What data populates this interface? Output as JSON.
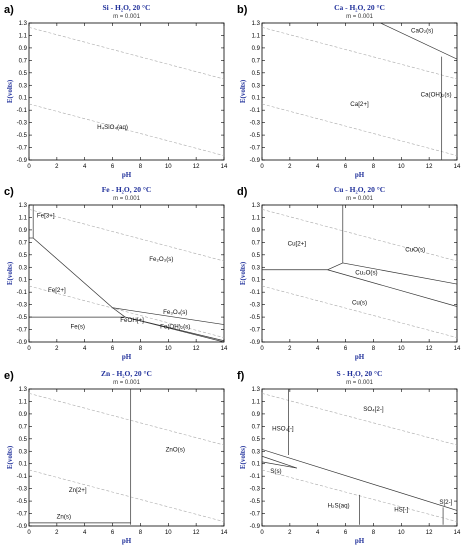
{
  "chart_data": [
    {
      "type": "line",
      "panel": "a)",
      "title": "Si - H₂O, 20 °C",
      "subtitle": "m = 0.001",
      "xlabel": "pH",
      "ylabel": "E(volts)",
      "xlim": [
        0,
        14
      ],
      "ylim": [
        -0.9,
        1.3
      ],
      "xticks": [
        0,
        2,
        4,
        6,
        8,
        10,
        12,
        14
      ],
      "yticks": [
        1.3,
        1.1,
        0.9,
        0.7,
        0.5,
        0.3,
        0.1,
        -0.1,
        -0.3,
        -0.5,
        -0.7,
        -0.9
      ],
      "water_lines": [
        {
          "label": "H₂O upper",
          "points": [
            [
              0,
              1.23
            ],
            [
              14,
              0.4
            ]
          ]
        },
        {
          "label": "H₂O lower",
          "points": [
            [
              0,
              0.0
            ],
            [
              14,
              -0.83
            ]
          ]
        }
      ],
      "boundaries": [],
      "regions": [
        {
          "label": "H₄SiO₄(aq)",
          "x": 6.0,
          "y": -0.4
        }
      ]
    },
    {
      "type": "line",
      "panel": "b)",
      "title": "Ca - H₂O, 20 °C",
      "subtitle": "m = 0.001",
      "xlabel": "pH",
      "ylabel": "E(volts)",
      "xlim": [
        0,
        14
      ],
      "ylim": [
        -0.9,
        1.3
      ],
      "xticks": [
        0,
        2,
        4,
        6,
        8,
        10,
        12,
        14
      ],
      "yticks": [
        1.3,
        1.1,
        0.9,
        0.7,
        0.5,
        0.3,
        0.1,
        -0.1,
        -0.3,
        -0.5,
        -0.7,
        -0.9
      ],
      "water_lines": [
        {
          "label": "H₂O upper",
          "points": [
            [
              0,
              1.23
            ],
            [
              14,
              0.4
            ]
          ]
        },
        {
          "label": "H₂O lower",
          "points": [
            [
              0,
              0.0
            ],
            [
              14,
              -0.83
            ]
          ]
        }
      ],
      "boundaries": [
        {
          "points": [
            [
              8.5,
              1.3
            ],
            [
              14,
              0.72
            ]
          ]
        },
        {
          "points": [
            [
              12.9,
              0.76
            ],
            [
              12.9,
              -0.9
            ]
          ]
        }
      ],
      "regions": [
        {
          "label": "CaO₂(s)",
          "x": 11.5,
          "y": 1.15
        },
        {
          "label": "Ca(OH)₂(s)",
          "x": 12.5,
          "y": 0.12
        },
        {
          "label": "Ca[2+]",
          "x": 7.0,
          "y": -0.03
        }
      ]
    },
    {
      "type": "line",
      "panel": "c)",
      "title": "Fe - H₂O, 20 °C",
      "subtitle": "m = 0.001",
      "xlabel": "pH",
      "ylabel": "E(volts)",
      "xlim": [
        0,
        14
      ],
      "ylim": [
        -0.9,
        1.3
      ],
      "xticks": [
        0,
        2,
        4,
        6,
        8,
        10,
        12,
        14
      ],
      "yticks": [
        1.3,
        1.1,
        0.9,
        0.7,
        0.5,
        0.3,
        0.1,
        -0.1,
        -0.3,
        -0.5,
        -0.7,
        -0.9
      ],
      "water_lines": [
        {
          "label": "H₂O upper",
          "points": [
            [
              0,
              1.23
            ],
            [
              14,
              0.4
            ]
          ]
        },
        {
          "label": "H₂O lower",
          "points": [
            [
              0,
              0.0
            ],
            [
              14,
              -0.83
            ]
          ]
        }
      ],
      "boundaries": [
        {
          "points": [
            [
              0.0,
              0.77
            ],
            [
              0.3,
              0.77
            ]
          ]
        },
        {
          "points": [
            [
              0.3,
              1.3
            ],
            [
              0.3,
              0.77
            ]
          ]
        },
        {
          "points": [
            [
              0.3,
              0.77
            ],
            [
              6.0,
              -0.35
            ]
          ]
        },
        {
          "points": [
            [
              6.0,
              -0.35
            ],
            [
              6.9,
              -0.5
            ]
          ]
        },
        {
          "points": [
            [
              0.0,
              -0.5
            ],
            [
              6.9,
              -0.5
            ]
          ]
        },
        {
          "points": [
            [
              6.0,
              -0.35
            ],
            [
              14,
              -0.62
            ]
          ]
        },
        {
          "points": [
            [
              6.9,
              -0.5
            ],
            [
              14,
              -0.88
            ]
          ]
        },
        {
          "points": [
            [
              6.9,
              -0.5
            ],
            [
              14,
              -0.9
            ]
          ]
        }
      ],
      "regions": [
        {
          "label": "Fe[3+]",
          "x": 1.2,
          "y": 1.1
        },
        {
          "label": "Fe₂O₃(s)",
          "x": 9.5,
          "y": 0.4
        },
        {
          "label": "Fe[2+]",
          "x": 2.0,
          "y": -0.1
        },
        {
          "label": "Fe₃O₄(s)",
          "x": 10.5,
          "y": -0.45
        },
        {
          "label": "FeOH[+]",
          "x": 7.4,
          "y": -0.58
        },
        {
          "label": "Fe(s)",
          "x": 3.5,
          "y": -0.68
        },
        {
          "label": "Fe(OH)₂(s)",
          "x": 10.5,
          "y": -0.68
        }
      ]
    },
    {
      "type": "line",
      "panel": "d)",
      "title": "Cu - H₂O, 20 °C",
      "subtitle": "m = 0.001",
      "xlabel": "pH",
      "ylabel": "E(volts)",
      "xlim": [
        0,
        14
      ],
      "ylim": [
        -0.9,
        1.3
      ],
      "xticks": [
        0,
        2,
        4,
        6,
        8,
        10,
        12,
        14
      ],
      "yticks": [
        1.3,
        1.1,
        0.9,
        0.7,
        0.5,
        0.3,
        0.1,
        -0.1,
        -0.3,
        -0.5,
        -0.7,
        -0.9
      ],
      "water_lines": [
        {
          "label": "H₂O upper",
          "points": [
            [
              0,
              1.23
            ],
            [
              14,
              0.4
            ]
          ]
        },
        {
          "label": "H₂O lower",
          "points": [
            [
              0,
              0.0
            ],
            [
              14,
              -0.83
            ]
          ]
        }
      ],
      "boundaries": [
        {
          "points": [
            [
              5.8,
              1.3
            ],
            [
              5.8,
              0.37
            ]
          ]
        },
        {
          "points": [
            [
              0.0,
              0.26
            ],
            [
              4.7,
              0.26
            ]
          ]
        },
        {
          "points": [
            [
              4.7,
              0.26
            ],
            [
              5.8,
              0.37
            ]
          ]
        },
        {
          "points": [
            [
              5.8,
              0.37
            ],
            [
              14,
              0.03
            ]
          ]
        },
        {
          "points": [
            [
              4.7,
              0.26
            ],
            [
              14,
              -0.33
            ]
          ]
        }
      ],
      "regions": [
        {
          "label": "Cu[2+]",
          "x": 2.5,
          "y": 0.65
        },
        {
          "label": "CuO(s)",
          "x": 11.0,
          "y": 0.55
        },
        {
          "label": "Cu₂O(s)",
          "x": 7.5,
          "y": 0.18
        },
        {
          "label": "Cu(s)",
          "x": 7.0,
          "y": -0.3
        }
      ]
    },
    {
      "type": "line",
      "panel": "e)",
      "title": "Zn - H₂O, 20 °C",
      "subtitle": "m = 0.001",
      "xlabel": "pH",
      "ylabel": "E(volts)",
      "xlim": [
        0,
        14
      ],
      "ylim": [
        -0.9,
        1.3
      ],
      "xticks": [
        0,
        2,
        4,
        6,
        8,
        10,
        12,
        14
      ],
      "yticks": [
        1.3,
        1.1,
        0.9,
        0.7,
        0.5,
        0.3,
        0.1,
        -0.1,
        -0.3,
        -0.5,
        -0.7,
        -0.9
      ],
      "water_lines": [
        {
          "label": "H₂O upper",
          "points": [
            [
              0,
              1.23
            ],
            [
              14,
              0.4
            ]
          ]
        },
        {
          "label": "H₂O lower",
          "points": [
            [
              0,
              0.0
            ],
            [
              14,
              -0.83
            ]
          ]
        }
      ],
      "boundaries": [
        {
          "points": [
            [
              7.3,
              1.3
            ],
            [
              7.3,
              -0.88
            ]
          ]
        },
        {
          "points": [
            [
              0.0,
              -0.85
            ],
            [
              7.3,
              -0.85
            ]
          ]
        }
      ],
      "regions": [
        {
          "label": "ZnO(s)",
          "x": 10.5,
          "y": 0.3
        },
        {
          "label": "Zn[2+]",
          "x": 3.5,
          "y": -0.35
        },
        {
          "label": "Zn(s)",
          "x": 2.5,
          "y": -0.78
        }
      ]
    },
    {
      "type": "line",
      "panel": "f)",
      "title": "S - H₂O, 20 °C",
      "subtitle": "m = 0.001",
      "xlabel": "pH",
      "ylabel": "E(volts)",
      "xlim": [
        0,
        14
      ],
      "ylim": [
        -0.9,
        1.3
      ],
      "xticks": [
        0,
        2,
        4,
        6,
        8,
        10,
        12,
        14
      ],
      "yticks": [
        1.3,
        1.1,
        0.9,
        0.7,
        0.5,
        0.3,
        0.1,
        -0.1,
        -0.3,
        -0.5,
        -0.7,
        -0.9
      ],
      "water_lines": [
        {
          "label": "H₂O upper",
          "points": [
            [
              0,
              1.23
            ],
            [
              14,
              0.4
            ]
          ]
        },
        {
          "label": "H₂O lower",
          "points": [
            [
              0,
              0.0
            ],
            [
              14,
              -0.83
            ]
          ]
        }
      ],
      "boundaries": [
        {
          "points": [
            [
              1.9,
              1.3
            ],
            [
              1.9,
              0.24
            ]
          ]
        },
        {
          "points": [
            [
              0.0,
              0.33
            ],
            [
              14,
              -0.65
            ]
          ]
        },
        {
          "points": [
            [
              0.0,
              0.22
            ],
            [
              2.5,
              0.03
            ]
          ]
        },
        {
          "points": [
            [
              0.0,
              0.13
            ],
            [
              2.5,
              0.03
            ]
          ]
        },
        {
          "points": [
            [
              7.0,
              -0.4
            ],
            [
              7.0,
              -0.88
            ]
          ]
        },
        {
          "points": [
            [
              13.0,
              -0.6
            ],
            [
              13.0,
              -0.88
            ]
          ]
        }
      ],
      "regions": [
        {
          "label": "HSO₄[-]",
          "x": 1.5,
          "y": 0.63
        },
        {
          "label": "SO₄[2-]",
          "x": 8.0,
          "y": 0.95
        },
        {
          "label": "S(s)",
          "x": 1.0,
          "y": -0.05
        },
        {
          "label": "H₂S(aq)",
          "x": 5.5,
          "y": -0.6
        },
        {
          "label": "HS[-]",
          "x": 10.0,
          "y": -0.67
        },
        {
          "label": "S[2-]",
          "x": 13.2,
          "y": -0.55
        }
      ]
    }
  ]
}
